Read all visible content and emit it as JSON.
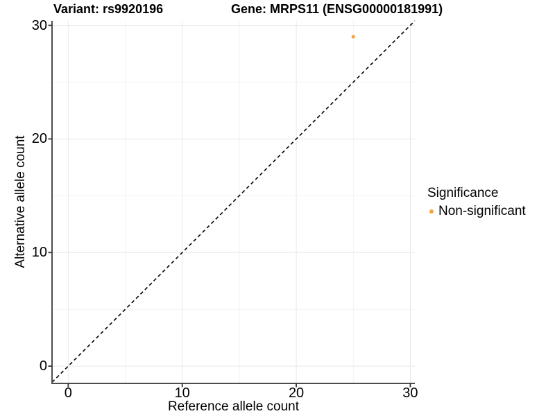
{
  "figure": {
    "title_variant": "Variant: rs9920196",
    "title_gene": "Gene: MRPS11 (ENSG00000181991)"
  },
  "legend": {
    "title": "Significance",
    "items": [
      {
        "label": "Non-significant",
        "color": "#F8A436"
      }
    ]
  },
  "colors": {
    "axis_line": "#4D4D4D",
    "tick_mark": "#333333",
    "grid_major": "#E8E8E8",
    "grid_minor": "#F2F2F2",
    "identity_line": "#000000",
    "point": "#F8A436"
  },
  "chart_data": {
    "type": "scatter",
    "title": "Variant: rs9920196 | Gene: MRPS11 (ENSG00000181991)",
    "xlabel": "Reference allele count",
    "ylabel": "Alternative allele count",
    "xlim": [
      -1.42,
      30.4
    ],
    "ylim": [
      -1.52,
      30.4
    ],
    "xticks": [
      0,
      10,
      20,
      30
    ],
    "yticks": [
      0,
      10,
      20,
      30
    ],
    "xticks_minor": [
      5,
      15,
      25
    ],
    "yticks_minor": [
      5,
      15,
      25
    ],
    "grid": "major+minor",
    "legend_position": "right",
    "legend_title": "Significance",
    "series": [
      {
        "name": "Non-significant",
        "color": "#F8A436",
        "point_radius": 2.6,
        "points": [
          [
            25,
            29
          ]
        ]
      }
    ],
    "reference_line": {
      "type": "abline",
      "slope": 1,
      "intercept": 0,
      "linetype": "dashed",
      "color": "#000000"
    }
  }
}
